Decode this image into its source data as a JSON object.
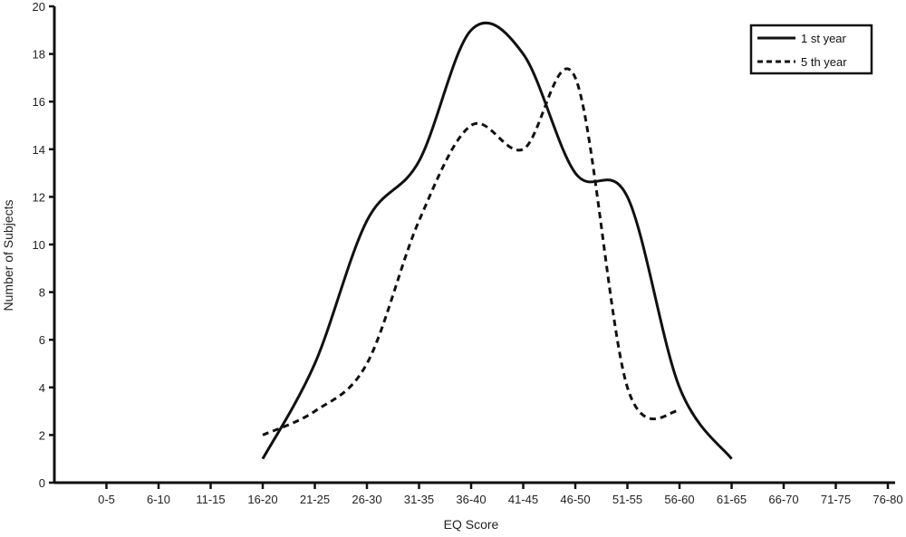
{
  "chart_data": {
    "type": "line",
    "xlabel": "EQ Score",
    "ylabel": "Number of Subjects",
    "ylim": [
      0,
      20
    ],
    "yticks": [
      0,
      2,
      4,
      6,
      8,
      10,
      12,
      14,
      16,
      18,
      20
    ],
    "categories": [
      "0-5",
      "6-10",
      "11-15",
      "16-20",
      "21-25",
      "26-30",
      "31-35",
      "36-40",
      "41-45",
      "46-50",
      "51-55",
      "56-60",
      "61-65",
      "66-70",
      "71-75",
      "76-80"
    ],
    "series": [
      {
        "name": "1 st year",
        "style": "solid",
        "color": "#111111",
        "x": [
          "16-20",
          "21-25",
          "26-30",
          "31-35",
          "36-40",
          "41-45",
          "46-50",
          "51-55",
          "56-60",
          "61-65"
        ],
        "values": [
          1,
          5,
          11,
          13.5,
          19,
          18,
          13,
          12,
          4,
          1
        ]
      },
      {
        "name": "5 th year",
        "style": "dashed",
        "color": "#111111",
        "x": [
          "16-20",
          "21-25",
          "26-30",
          "31-35",
          "36-40",
          "41-45",
          "46-50",
          "51-55",
          "56-60"
        ],
        "values": [
          2,
          3,
          5,
          11,
          15,
          14,
          17,
          4,
          3
        ]
      }
    ],
    "legend": {
      "position": "top-right"
    },
    "grid": false
  }
}
